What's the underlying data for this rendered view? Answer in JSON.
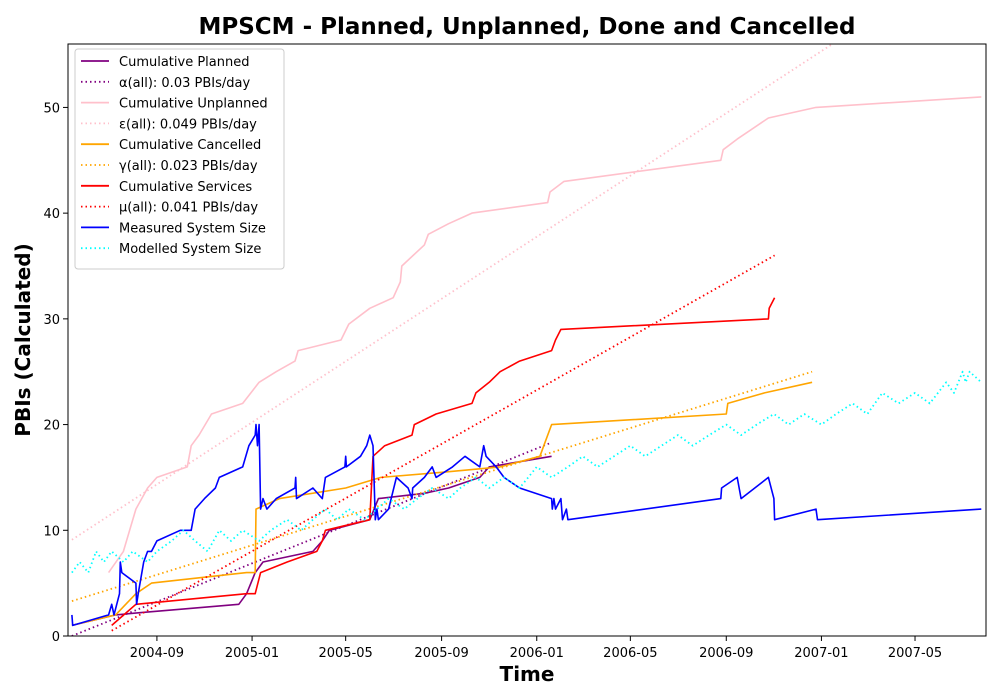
{
  "chart_data": {
    "type": "line",
    "title": "MPSCM - Planned, Unplanned, Done  and Cancelled",
    "xlabel": "Time",
    "ylabel": "PBIs (Calculated)",
    "x_type": "date",
    "xlim": [
      "2004-05-10",
      "2007-07-31"
    ],
    "ylim": [
      0,
      56
    ],
    "x_ticks": [
      "2004-09-01",
      "2005-01-01",
      "2005-05-01",
      "2005-09-01",
      "2006-01-01",
      "2006-05-01",
      "2006-09-01",
      "2007-01-01",
      "2007-05-01"
    ],
    "x_tick_labels": [
      "2004-09",
      "2005-01",
      "2005-05",
      "2005-09",
      "2006-01",
      "2006-05",
      "2006-09",
      "2007-01",
      "2007-05"
    ],
    "y_ticks": [
      0,
      10,
      20,
      30,
      40,
      50
    ],
    "grid": false,
    "legend_position": "top-left",
    "series": [
      {
        "name": "Cumulative Planned",
        "style": "solid",
        "color": "#800080",
        "points": [
          [
            "2004-05-15",
            1
          ],
          [
            "2004-07-10",
            2
          ],
          [
            "2004-08-10",
            2.2
          ],
          [
            "2004-12-15",
            3
          ],
          [
            "2004-12-25",
            4
          ],
          [
            "2005-01-05",
            6
          ],
          [
            "2005-01-15",
            7
          ],
          [
            "2005-03-20",
            8
          ],
          [
            "2005-04-01",
            9
          ],
          [
            "2005-04-10",
            10
          ],
          [
            "2005-06-01",
            11
          ],
          [
            "2005-06-12",
            13
          ],
          [
            "2005-08-10",
            13.5
          ],
          [
            "2005-09-10",
            14
          ],
          [
            "2005-10-20",
            15
          ],
          [
            "2005-11-01",
            16
          ],
          [
            "2006-01-20",
            17
          ]
        ]
      },
      {
        "name": "α(all): 0.03 PBIs/day",
        "style": "dotted",
        "color": "#800080",
        "points": [
          [
            "2004-05-15",
            0
          ],
          [
            "2006-01-20",
            18.3
          ]
        ]
      },
      {
        "name": "Cumulative Unplanned",
        "style": "solid",
        "color": "#ffc0cb",
        "points": [
          [
            "2004-07-01",
            6
          ],
          [
            "2004-07-20",
            8
          ],
          [
            "2004-08-05",
            12
          ],
          [
            "2004-08-20",
            14
          ],
          [
            "2004-09-01",
            15
          ],
          [
            "2004-10-10",
            16
          ],
          [
            "2004-10-15",
            18
          ],
          [
            "2004-10-25",
            19
          ],
          [
            "2004-11-10",
            21
          ],
          [
            "2004-12-20",
            22
          ],
          [
            "2005-01-10",
            24
          ],
          [
            "2005-02-01",
            25
          ],
          [
            "2005-02-25",
            26
          ],
          [
            "2005-03-01",
            27
          ],
          [
            "2005-04-25",
            28
          ],
          [
            "2005-05-05",
            29.5
          ],
          [
            "2005-06-01",
            31
          ],
          [
            "2005-07-01",
            32
          ],
          [
            "2005-07-10",
            33.5
          ],
          [
            "2005-07-12",
            35
          ],
          [
            "2005-08-10",
            37
          ],
          [
            "2005-08-15",
            38
          ],
          [
            "2005-09-10",
            39
          ],
          [
            "2005-10-10",
            40
          ],
          [
            "2006-01-15",
            41
          ],
          [
            "2006-01-18",
            42
          ],
          [
            "2006-02-05",
            43
          ],
          [
            "2006-08-25",
            45
          ],
          [
            "2006-08-28",
            46
          ],
          [
            "2006-09-15",
            47
          ],
          [
            "2006-10-25",
            49
          ],
          [
            "2006-12-25",
            50
          ],
          [
            "2007-07-25",
            51
          ]
        ]
      },
      {
        "name": "ε(all): 0.049 PBIs/day",
        "style": "dotted",
        "color": "#ffc0cb",
        "points": [
          [
            "2004-05-15",
            9.1
          ],
          [
            "2007-01-15",
            56
          ]
        ]
      },
      {
        "name": "Cumulative Cancelled",
        "style": "solid",
        "color": "#ffa500",
        "points": [
          [
            "2004-05-15",
            1
          ],
          [
            "2004-07-10",
            2
          ],
          [
            "2004-08-05",
            4
          ],
          [
            "2004-08-25",
            5
          ],
          [
            "2004-12-25",
            6
          ],
          [
            "2005-01-05",
            6
          ],
          [
            "2005-01-06",
            12
          ],
          [
            "2005-02-05",
            13
          ],
          [
            "2005-05-01",
            14
          ],
          [
            "2005-06-15",
            15
          ],
          [
            "2005-09-05",
            15.5
          ],
          [
            "2005-11-15",
            16
          ],
          [
            "2006-01-05",
            17
          ],
          [
            "2006-01-10",
            18
          ],
          [
            "2006-01-20",
            20
          ],
          [
            "2006-09-01",
            21
          ],
          [
            "2006-09-03",
            22
          ],
          [
            "2006-10-20",
            23
          ],
          [
            "2006-12-20",
            24
          ]
        ]
      },
      {
        "name": "γ(all): 0.023 PBIs/day",
        "style": "dotted",
        "color": "#ffa500",
        "points": [
          [
            "2004-05-15",
            3.3
          ],
          [
            "2006-12-20",
            25
          ]
        ]
      },
      {
        "name": "Cumulative Services",
        "style": "solid",
        "color": "#ff0000",
        "points": [
          [
            "2004-07-05",
            1
          ],
          [
            "2004-08-05",
            3
          ],
          [
            "2004-12-25",
            4
          ],
          [
            "2005-01-05",
            4
          ],
          [
            "2005-01-12",
            6
          ],
          [
            "2005-02-15",
            7
          ],
          [
            "2005-03-25",
            8
          ],
          [
            "2005-04-01",
            9
          ],
          [
            "2005-04-05",
            10
          ],
          [
            "2005-06-01",
            11
          ],
          [
            "2005-06-05",
            17
          ],
          [
            "2005-06-20",
            18
          ],
          [
            "2005-07-25",
            19
          ],
          [
            "2005-07-28",
            20
          ],
          [
            "2005-08-25",
            21
          ],
          [
            "2005-10-10",
            22
          ],
          [
            "2005-10-15",
            23
          ],
          [
            "2005-11-01",
            24
          ],
          [
            "2005-11-15",
            25
          ],
          [
            "2005-12-10",
            26
          ],
          [
            "2006-01-20",
            27
          ],
          [
            "2006-01-25",
            28
          ],
          [
            "2006-02-01",
            29
          ],
          [
            "2006-10-25",
            30
          ],
          [
            "2006-10-26",
            31
          ],
          [
            "2006-11-02",
            32
          ]
        ]
      },
      {
        "name": "μ(all): 0.041 PBIs/day",
        "style": "dotted",
        "color": "#ff0000",
        "points": [
          [
            "2004-07-05",
            0.5
          ],
          [
            "2006-11-02",
            36
          ]
        ]
      },
      {
        "name": "Measured System Size",
        "style": "solid",
        "color": "#0000ff",
        "points": [
          [
            "2004-05-15",
            2
          ],
          [
            "2004-05-16",
            1
          ],
          [
            "2004-07-01",
            2
          ],
          [
            "2004-07-05",
            3
          ],
          [
            "2004-07-08",
            2
          ],
          [
            "2004-07-15",
            4
          ],
          [
            "2004-07-16",
            7
          ],
          [
            "2004-07-18",
            6
          ],
          [
            "2004-08-05",
            5
          ],
          [
            "2004-08-06",
            3
          ],
          [
            "2004-08-08",
            4
          ],
          [
            "2004-08-15",
            7
          ],
          [
            "2004-08-20",
            8
          ],
          [
            "2004-08-25",
            8
          ],
          [
            "2004-09-01",
            9
          ],
          [
            "2004-10-01",
            10
          ],
          [
            "2004-10-15",
            10
          ],
          [
            "2004-10-20",
            12
          ],
          [
            "2004-11-01",
            13
          ],
          [
            "2004-11-15",
            14
          ],
          [
            "2004-11-20",
            15
          ],
          [
            "2004-12-20",
            16
          ],
          [
            "2004-12-28",
            18
          ],
          [
            "2005-01-05",
            19
          ],
          [
            "2005-01-06",
            20
          ],
          [
            "2005-01-08",
            18
          ],
          [
            "2005-01-10",
            20
          ],
          [
            "2005-01-12",
            12
          ],
          [
            "2005-01-15",
            13
          ],
          [
            "2005-01-20",
            12
          ],
          [
            "2005-02-01",
            13
          ],
          [
            "2005-02-25",
            14
          ],
          [
            "2005-02-26",
            15
          ],
          [
            "2005-02-27",
            13
          ],
          [
            "2005-03-20",
            14
          ],
          [
            "2005-04-01",
            13
          ],
          [
            "2005-04-05",
            15
          ],
          [
            "2005-04-30",
            16
          ],
          [
            "2005-05-01",
            17
          ],
          [
            "2005-05-02",
            16
          ],
          [
            "2005-05-20",
            17
          ],
          [
            "2005-05-28",
            18
          ],
          [
            "2005-06-01",
            19
          ],
          [
            "2005-06-05",
            18
          ],
          [
            "2005-06-08",
            11
          ],
          [
            "2005-06-10",
            12
          ],
          [
            "2005-06-12",
            11
          ],
          [
            "2005-06-25",
            12
          ],
          [
            "2005-07-05",
            15
          ],
          [
            "2005-07-20",
            14
          ],
          [
            "2005-07-25",
            13
          ],
          [
            "2005-07-26",
            14
          ],
          [
            "2005-08-10",
            15
          ],
          [
            "2005-08-20",
            16
          ],
          [
            "2005-08-25",
            15
          ],
          [
            "2005-09-15",
            16
          ],
          [
            "2005-10-01",
            17
          ],
          [
            "2005-10-20",
            16
          ],
          [
            "2005-10-25",
            18
          ],
          [
            "2005-10-28",
            17
          ],
          [
            "2005-11-10",
            16
          ],
          [
            "2005-11-20",
            15
          ],
          [
            "2005-12-10",
            14
          ],
          [
            "2006-01-20",
            13
          ],
          [
            "2006-01-21",
            12
          ],
          [
            "2006-01-23",
            13
          ],
          [
            "2006-01-25",
            12
          ],
          [
            "2006-02-01",
            13
          ],
          [
            "2006-02-03",
            11
          ],
          [
            "2006-02-08",
            12
          ],
          [
            "2006-02-10",
            11
          ],
          [
            "2006-08-25",
            13
          ],
          [
            "2006-08-26",
            14
          ],
          [
            "2006-09-15",
            15
          ],
          [
            "2006-09-20",
            13
          ],
          [
            "2006-10-25",
            15
          ],
          [
            "2006-11-01",
            13
          ],
          [
            "2006-11-02",
            11
          ],
          [
            "2006-12-25",
            12
          ],
          [
            "2006-12-27",
            11
          ],
          [
            "2007-07-25",
            12
          ]
        ]
      },
      {
        "name": "Modelled System Size",
        "style": "dotted",
        "color": "#00ffff",
        "points": [
          [
            "2004-05-15",
            6
          ],
          [
            "2004-05-25",
            7
          ],
          [
            "2004-06-05",
            6
          ],
          [
            "2004-06-15",
            8
          ],
          [
            "2004-06-25",
            7
          ],
          [
            "2004-07-05",
            8
          ],
          [
            "2004-07-20",
            7
          ],
          [
            "2004-08-01",
            8
          ],
          [
            "2004-08-20",
            7
          ],
          [
            "2004-09-01",
            8
          ],
          [
            "2004-09-20",
            9
          ],
          [
            "2004-10-05",
            10
          ],
          [
            "2004-10-20",
            9
          ],
          [
            "2004-11-05",
            8
          ],
          [
            "2004-11-20",
            10
          ],
          [
            "2004-12-05",
            9
          ],
          [
            "2004-12-20",
            10
          ],
          [
            "2005-01-10",
            9
          ],
          [
            "2005-01-25",
            10
          ],
          [
            "2005-02-15",
            11
          ],
          [
            "2005-03-05",
            10
          ],
          [
            "2005-03-20",
            11
          ],
          [
            "2005-04-05",
            12
          ],
          [
            "2005-04-20",
            11
          ],
          [
            "2005-05-05",
            12
          ],
          [
            "2005-05-25",
            11
          ],
          [
            "2005-06-10",
            12
          ],
          [
            "2005-06-25",
            13
          ],
          [
            "2005-07-15",
            12
          ],
          [
            "2005-08-01",
            13
          ],
          [
            "2005-08-20",
            14
          ],
          [
            "2005-09-10",
            13
          ],
          [
            "2005-09-25",
            14
          ],
          [
            "2005-10-15",
            15
          ],
          [
            "2005-11-01",
            14
          ],
          [
            "2005-11-20",
            15
          ],
          [
            "2005-12-10",
            14
          ],
          [
            "2006-01-01",
            16
          ],
          [
            "2006-01-20",
            15
          ],
          [
            "2006-02-10",
            16
          ],
          [
            "2006-03-01",
            17
          ],
          [
            "2006-03-20",
            16
          ],
          [
            "2006-04-10",
            17
          ],
          [
            "2006-05-01",
            18
          ],
          [
            "2006-05-20",
            17
          ],
          [
            "2006-06-10",
            18
          ],
          [
            "2006-07-01",
            19
          ],
          [
            "2006-07-20",
            18
          ],
          [
            "2006-08-10",
            19
          ],
          [
            "2006-09-01",
            20
          ],
          [
            "2006-09-20",
            19
          ],
          [
            "2006-10-10",
            20
          ],
          [
            "2006-11-01",
            21
          ],
          [
            "2006-11-20",
            20
          ],
          [
            "2006-12-10",
            21
          ],
          [
            "2007-01-01",
            20
          ],
          [
            "2007-01-20",
            21
          ],
          [
            "2007-02-10",
            22
          ],
          [
            "2007-03-01",
            21
          ],
          [
            "2007-03-20",
            23
          ],
          [
            "2007-04-10",
            22
          ],
          [
            "2007-05-01",
            23
          ],
          [
            "2007-05-20",
            22
          ],
          [
            "2007-06-10",
            24
          ],
          [
            "2007-06-20",
            23
          ],
          [
            "2007-07-01",
            25
          ],
          [
            "2007-07-05",
            24
          ],
          [
            "2007-07-10",
            25
          ],
          [
            "2007-07-25",
            24
          ]
        ]
      }
    ]
  }
}
